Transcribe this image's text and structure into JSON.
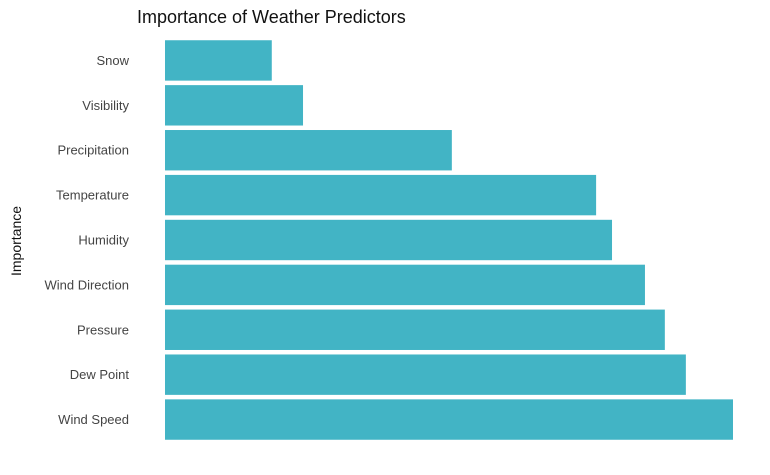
{
  "chart_data": {
    "type": "bar",
    "orientation": "horizontal",
    "title": "Importance of Weather Predictors",
    "xlabel": "",
    "ylabel": "Importance",
    "categories": [
      "Snow",
      "Visibility",
      "Precipitation",
      "Temperature",
      "Humidity",
      "Wind Direction",
      "Pressure",
      "Dew Point",
      "Wind Speed"
    ],
    "values": [
      0.188,
      0.243,
      0.505,
      0.759,
      0.787,
      0.845,
      0.88,
      0.917,
      1.0
    ],
    "xlim": [
      0,
      1.0
    ],
    "grid": false,
    "legend": "none",
    "bar_color": "#42b4c5"
  }
}
